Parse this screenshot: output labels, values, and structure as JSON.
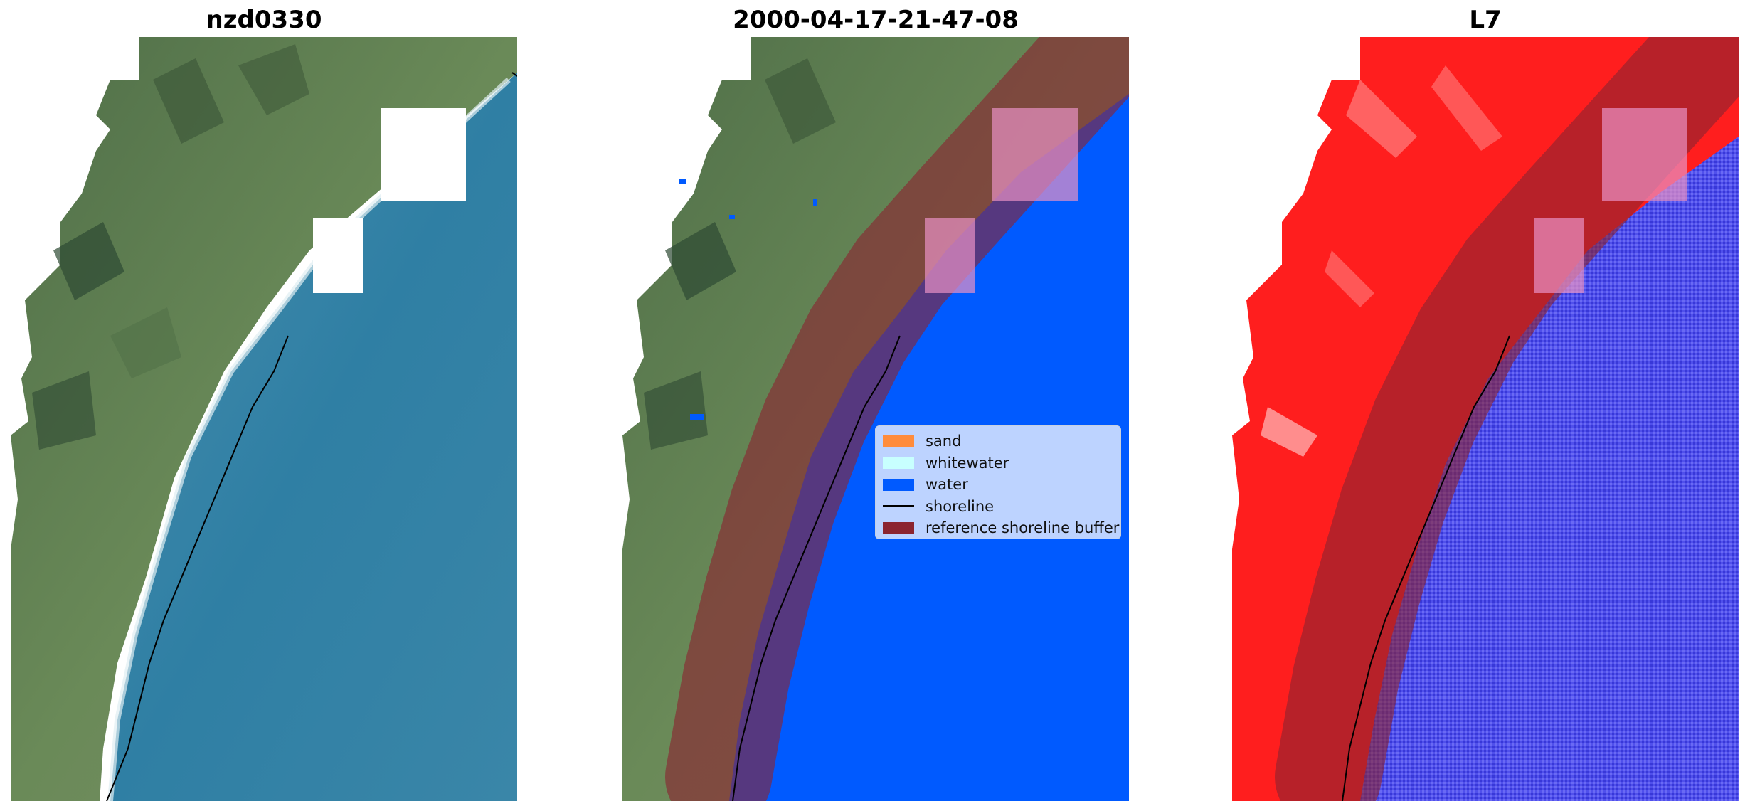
{
  "panels": [
    {
      "title": "nzd0330"
    },
    {
      "title": "2000-04-17-21-47-08"
    },
    {
      "title": "L7"
    }
  ],
  "legend": {
    "items": [
      {
        "label": "sand",
        "color": "#ff8c3c",
        "kind": "patch"
      },
      {
        "label": "whitewater",
        "color": "#c8ffff",
        "kind": "patch"
      },
      {
        "label": "water",
        "color": "#005aff",
        "kind": "patch"
      },
      {
        "label": "shoreline",
        "color": "#000000",
        "kind": "line"
      },
      {
        "label": "reference shoreline buffer",
        "color": "#8b2430",
        "kind": "patch"
      }
    ]
  },
  "colors": {
    "land": "#5a7a4e",
    "sea": "#2e7a9e",
    "water_class": "#005aff",
    "buffer": "#8b2430",
    "index_land": "#ff2020",
    "index_water": "#4a4ae8"
  }
}
